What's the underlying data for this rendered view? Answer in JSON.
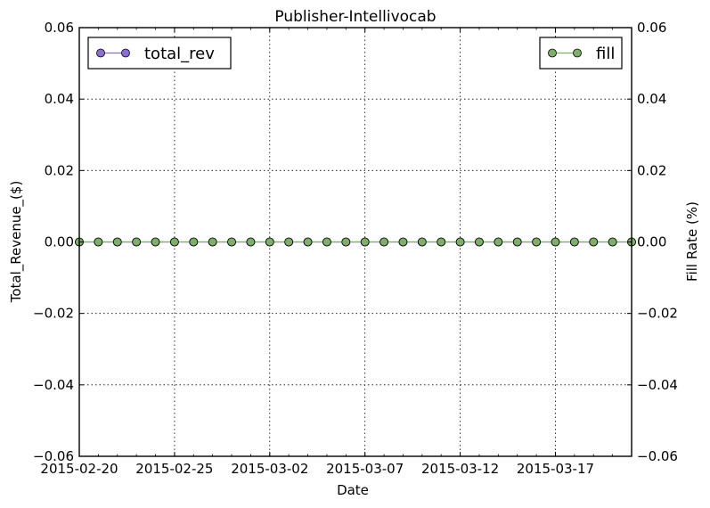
{
  "chart_data": {
    "type": "line",
    "title": "Publisher-Intellivocab",
    "xlabel": "Date",
    "ylabel_left": "Total_Revenue_($)",
    "ylabel_right": "Fill Rate (%)",
    "x_tick_labels": [
      "2015-02-20",
      "2015-02-25",
      "2015-03-02",
      "2015-03-07",
      "2015-03-12",
      "2015-03-17"
    ],
    "y_tick_labels_left": [
      "0.06",
      "0.04",
      "0.02",
      "0.00",
      "−0.02",
      "−0.04",
      "−0.06"
    ],
    "y_tick_labels_right": [
      "0.06",
      "0.04",
      "0.02",
      "0.00",
      "−0.02",
      "−0.04",
      "−0.06"
    ],
    "ylim_left": [
      -0.06,
      0.06
    ],
    "ylim_right": [
      -0.06,
      0.06
    ],
    "grid": true,
    "x": [
      "2015-02-20",
      "2015-02-21",
      "2015-02-22",
      "2015-02-23",
      "2015-02-24",
      "2015-02-25",
      "2015-02-26",
      "2015-02-27",
      "2015-02-28",
      "2015-03-01",
      "2015-03-02",
      "2015-03-03",
      "2015-03-04",
      "2015-03-05",
      "2015-03-06",
      "2015-03-07",
      "2015-03-08",
      "2015-03-09",
      "2015-03-10",
      "2015-03-11",
      "2015-03-12",
      "2015-03-13",
      "2015-03-14",
      "2015-03-15",
      "2015-03-16",
      "2015-03-17",
      "2015-03-18",
      "2015-03-19",
      "2015-03-20",
      "2015-03-21"
    ],
    "series": [
      {
        "name": "total_rev",
        "axis": "left",
        "color": "#8b6fd6",
        "legend_position": "upper left",
        "values": [
          0,
          0,
          0,
          0,
          0,
          0,
          0,
          0,
          0,
          0,
          0,
          0,
          0,
          0,
          0,
          0,
          0,
          0,
          0,
          0,
          0,
          0,
          0,
          0,
          0,
          0,
          0,
          0,
          0,
          0
        ]
      },
      {
        "name": "fill",
        "axis": "right",
        "color": "#7fae6c",
        "legend_position": "upper right",
        "values": [
          0,
          0,
          0,
          0,
          0,
          0,
          0,
          0,
          0,
          0,
          0,
          0,
          0,
          0,
          0,
          0,
          0,
          0,
          0,
          0,
          0,
          0,
          0,
          0,
          0,
          0,
          0,
          0,
          0,
          0
        ]
      }
    ]
  }
}
